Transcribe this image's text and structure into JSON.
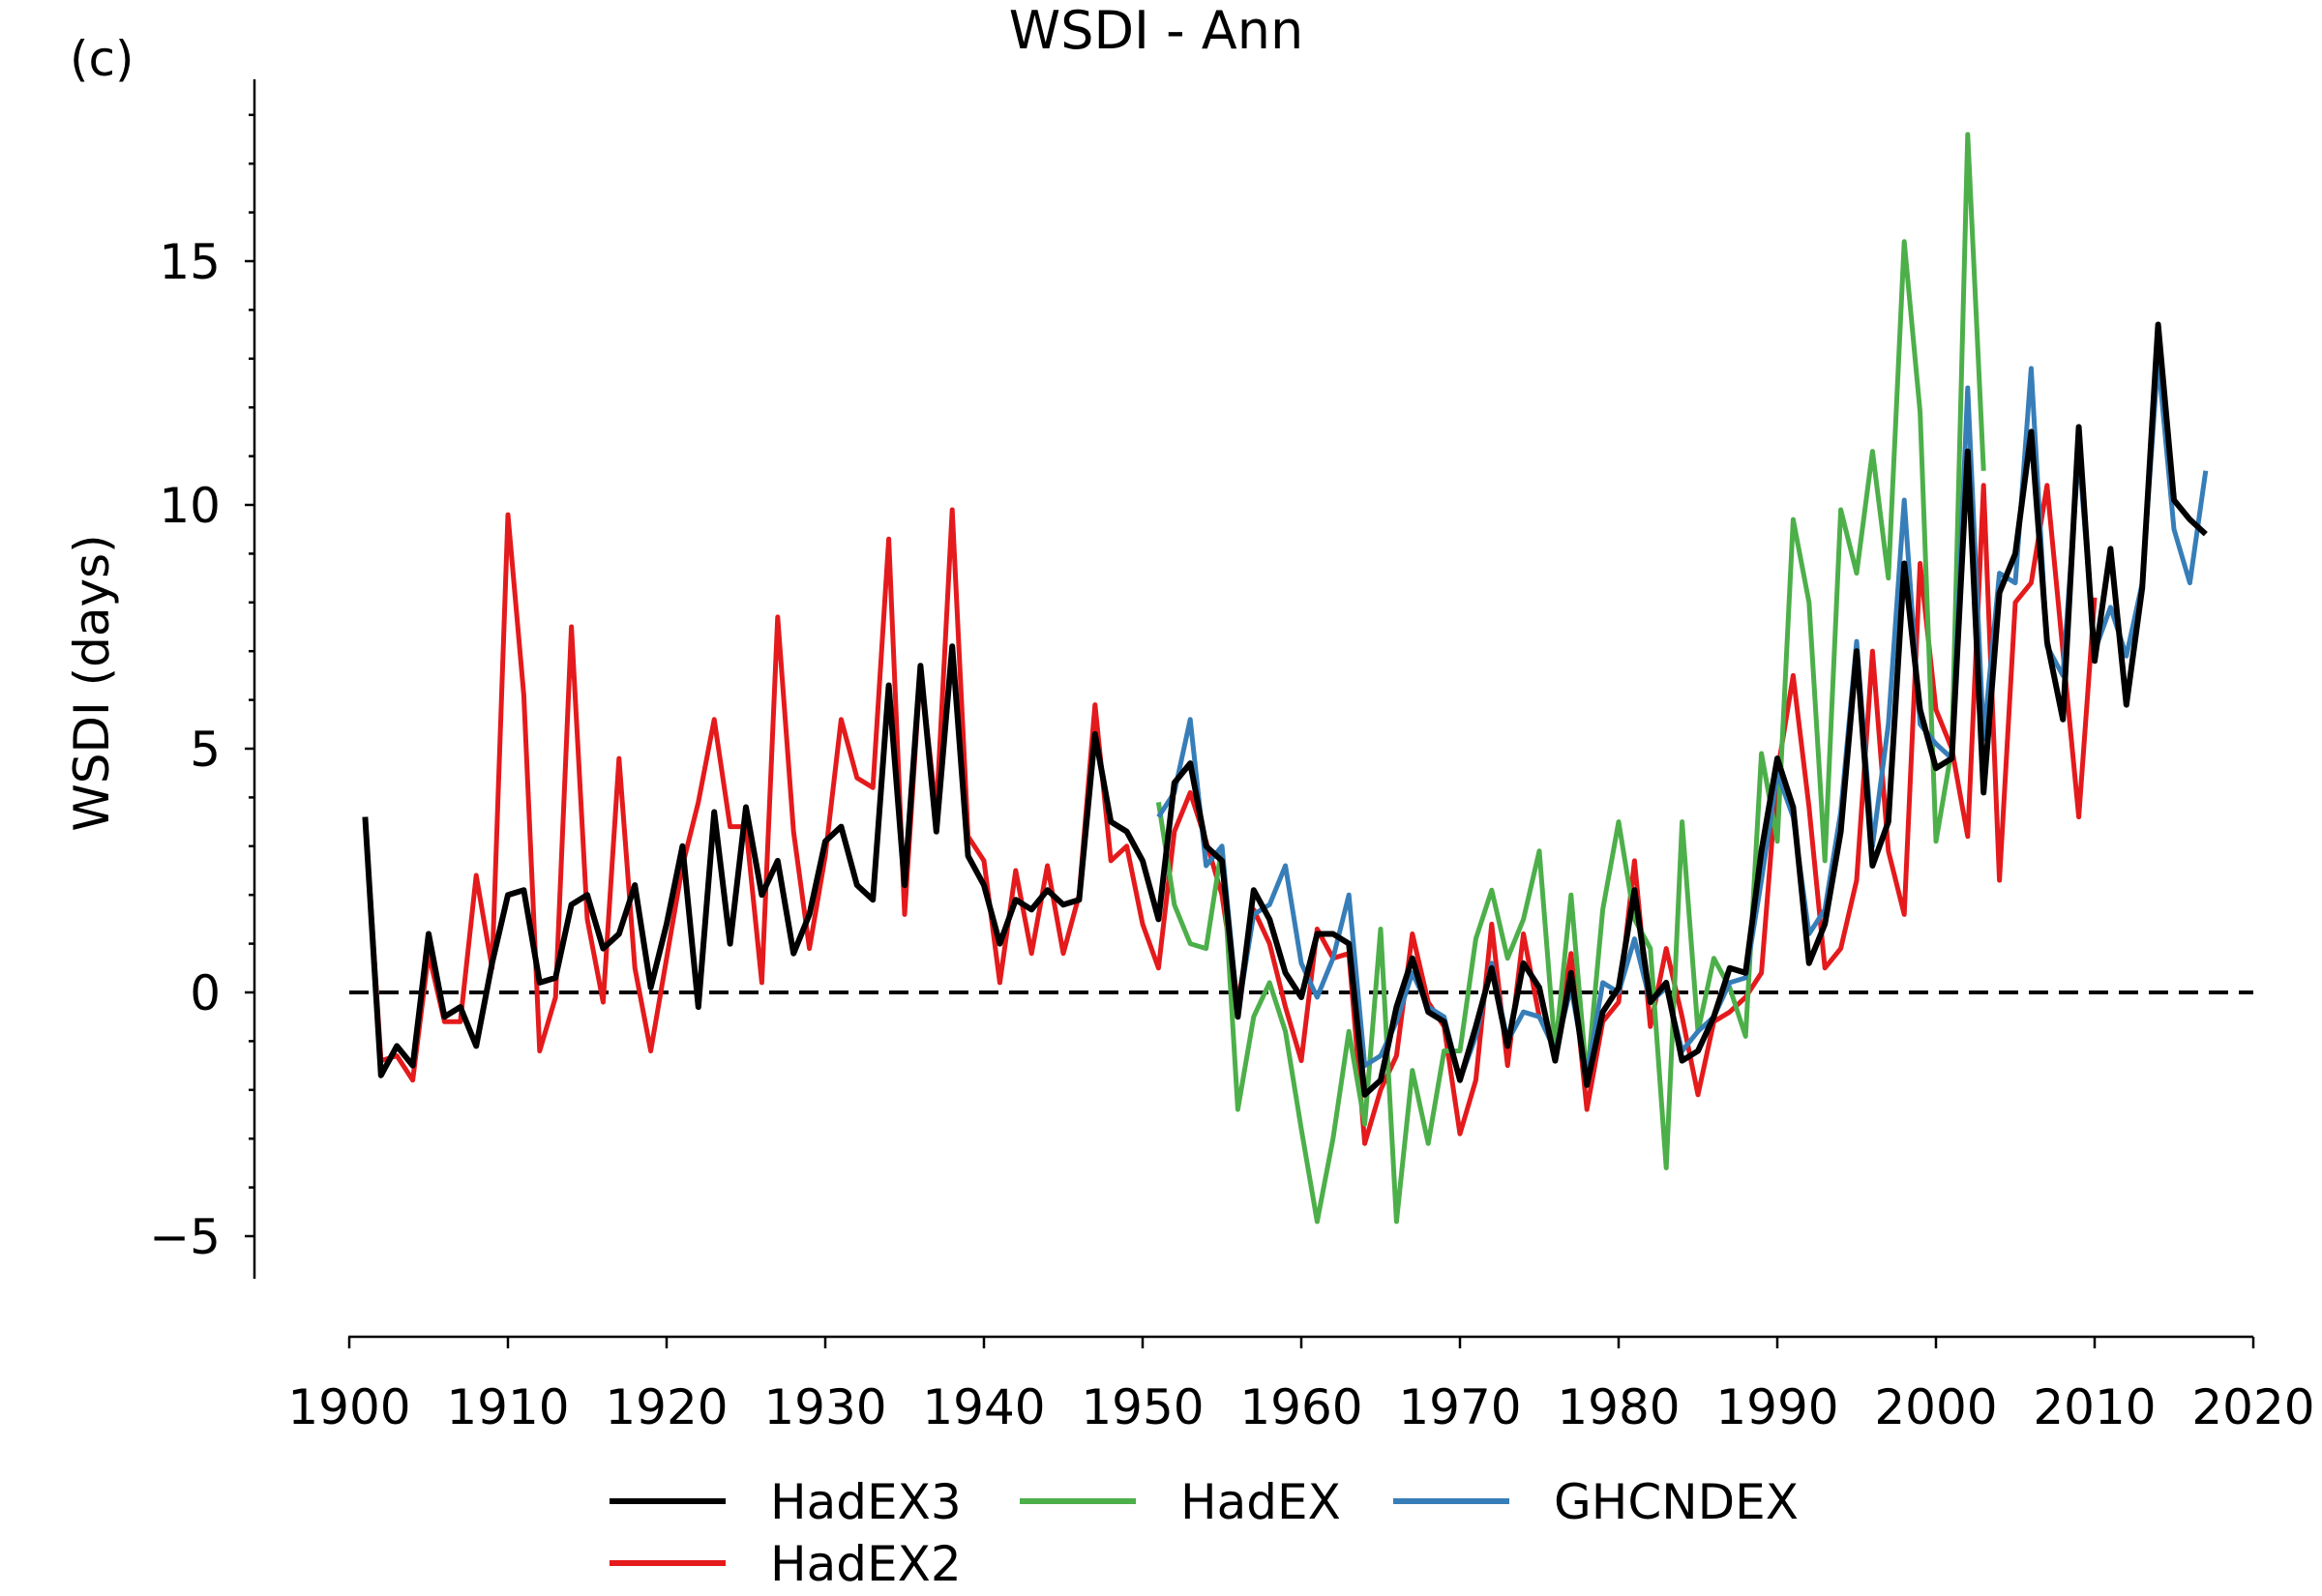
{
  "chart_data": {
    "type": "line",
    "panel_label": "(c)",
    "title": "WSDI - Ann",
    "xlabel": "",
    "ylabel": "WSDI (days)",
    "xlim": [
      1900,
      2020
    ],
    "ylim": [
      -5.8,
      18.7
    ],
    "x_ticks": [
      1900,
      1910,
      1920,
      1930,
      1940,
      1950,
      1960,
      1970,
      1980,
      1990,
      2000,
      2010,
      2020
    ],
    "y_ticks": [
      -5,
      0,
      5,
      10,
      15
    ],
    "y_tick_labels": [
      "−5",
      "0",
      "5",
      "10",
      "15"
    ],
    "reference_line": 0,
    "grid": false,
    "legend_position": "bottom",
    "series": [
      {
        "name": "HadEX2",
        "color": "#e41a1c",
        "x_start": 1901,
        "values": [
          3.6,
          -1.4,
          -1.3,
          -1.8,
          0.8,
          -0.6,
          -0.6,
          2.4,
          0.5,
          9.8,
          6.1,
          -1.2,
          -0.1,
          7.5,
          1.5,
          -0.2,
          4.8,
          0.5,
          -1.2,
          0.7,
          2.6,
          3.9,
          5.6,
          3.4,
          3.4,
          0.2,
          7.7,
          3.3,
          0.9,
          2.8,
          5.6,
          4.4,
          4.2,
          9.3,
          1.6,
          6.6,
          3.7,
          9.9,
          3.2,
          2.7,
          0.2,
          2.5,
          0.8,
          2.6,
          0.8,
          2.0,
          5.9,
          2.7,
          3.0,
          1.4,
          0.5,
          3.3,
          4.1,
          3.1,
          2.0,
          -0.2,
          1.7,
          1.0,
          -0.3,
          -1.4,
          1.3,
          0.7,
          0.8,
          -3.1,
          -2.0,
          -1.3,
          1.2,
          -0.2,
          -0.7,
          -2.9,
          -1.8,
          1.4,
          -1.5,
          1.2,
          -0.5,
          -1.1,
          0.8,
          -2.4,
          -0.6,
          -0.2,
          2.7,
          -0.7,
          0.9,
          -0.5,
          -2.1,
          -0.6,
          -0.4,
          -0.1,
          0.4,
          4.5,
          6.5,
          3.8,
          0.5,
          0.9,
          2.3,
          7.0,
          2.9,
          1.6,
          8.8,
          5.8,
          5.0,
          3.2,
          10.4,
          2.3,
          8.0,
          8.4,
          10.4,
          7.0,
          3.6,
          8.1
        ]
      },
      {
        "name": "HadEX",
        "color": "#4daf4a",
        "x_start": 1951,
        "values": [
          3.9,
          1.8,
          1.0,
          0.9,
          3.0,
          -2.4,
          -0.5,
          0.2,
          -0.8,
          -2.8,
          -4.7,
          -3.0,
          -0.8,
          -2.7,
          1.3,
          -4.7,
          -1.6,
          -3.1,
          -1.2,
          -1.2,
          1.1,
          2.1,
          0.7,
          1.5,
          2.9,
          -1.2,
          2.0,
          -1.8,
          1.7,
          3.5,
          1.5,
          0.9,
          -3.6,
          3.5,
          -0.8,
          0.7,
          0.1,
          -0.9,
          4.9,
          3.1,
          9.7,
          8.0,
          2.7,
          9.9,
          8.6,
          11.1,
          8.5,
          15.4,
          11.9,
          3.1,
          5.0,
          17.6,
          10.7
        ]
      },
      {
        "name": "GHCNDEX",
        "color": "#377eb8",
        "x_start": 1951,
        "values": [
          3.6,
          4.1,
          5.6,
          2.6,
          3.0,
          -0.4,
          1.6,
          1.8,
          2.6,
          0.6,
          -0.1,
          0.7,
          2.0,
          -1.5,
          -1.3,
          -0.6,
          0.4,
          -0.3,
          -0.5,
          -1.8,
          -0.9,
          0.6,
          -1.0,
          -0.4,
          -0.5,
          -1.2,
          0.1,
          -1.7,
          0.2,
          0.0,
          1.1,
          -0.2,
          0.1,
          -1.2,
          -0.8,
          -0.5,
          0.2,
          0.3,
          2.3,
          4.5,
          3.6,
          1.2,
          1.7,
          3.7,
          7.2,
          3.0,
          5.5,
          10.1,
          5.5,
          5.1,
          4.8,
          12.4,
          5.2,
          8.6,
          8.4,
          12.8,
          7.1,
          6.5,
          11.1,
          7.0,
          7.9,
          6.9,
          8.4,
          13.0,
          9.5,
          8.4,
          10.7
        ]
      },
      {
        "name": "HadEX3",
        "color": "#000000",
        "x_start": 1901,
        "values": [
          3.6,
          -1.7,
          -1.1,
          -1.5,
          1.2,
          -0.5,
          -0.3,
          -1.1,
          0.6,
          2.0,
          2.1,
          0.2,
          0.3,
          1.8,
          2.0,
          0.9,
          1.2,
          2.2,
          0.1,
          1.4,
          3.0,
          -0.3,
          3.7,
          1.0,
          3.8,
          2.0,
          2.7,
          0.8,
          1.6,
          3.1,
          3.4,
          2.2,
          1.9,
          6.3,
          2.2,
          6.7,
          3.3,
          7.1,
          2.8,
          2.2,
          1.0,
          1.9,
          1.7,
          2.1,
          1.8,
          1.9,
          5.3,
          3.5,
          3.3,
          2.7,
          1.5,
          4.3,
          4.7,
          3.0,
          2.7,
          -0.5,
          2.1,
          1.5,
          0.4,
          -0.1,
          1.2,
          1.2,
          1.0,
          -2.1,
          -1.8,
          -0.3,
          0.7,
          -0.4,
          -0.6,
          -1.8,
          -0.7,
          0.5,
          -1.1,
          0.6,
          0.1,
          -1.4,
          0.4,
          -1.9,
          -0.4,
          0.1,
          2.1,
          -0.2,
          0.2,
          -1.4,
          -1.2,
          -0.5,
          0.5,
          0.4,
          2.9,
          4.8,
          3.8,
          0.6,
          1.4,
          3.3,
          7.0,
          2.6,
          3.5,
          8.8,
          5.8,
          4.6,
          4.8,
          11.1,
          4.1,
          8.2,
          9.0,
          11.5,
          7.2,
          5.6,
          11.6,
          6.8,
          9.1,
          5.9,
          8.3,
          13.7,
          10.1,
          9.7,
          9.4
        ]
      }
    ],
    "legend_order": [
      "HadEX3",
      "HadEX2",
      "HadEX",
      "GHCNDEX"
    ]
  }
}
